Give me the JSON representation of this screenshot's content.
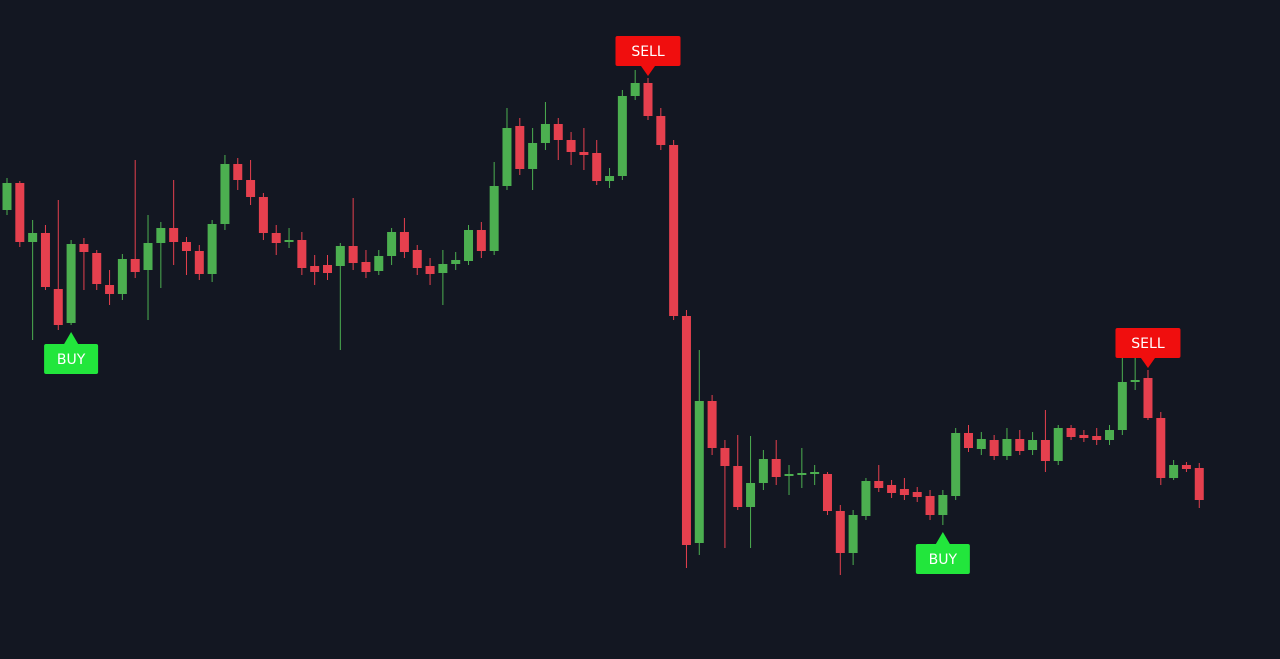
{
  "chart_data": {
    "type": "candlestick",
    "ylim": [
      0,
      659
    ],
    "up_color": "#4caf50",
    "down_color": "#e5404e",
    "signal_colors": {
      "BUY": "#22e63c",
      "SELL": "#f00e0e"
    },
    "open": [
      449,
      476,
      417,
      426,
      370,
      336,
      415,
      406,
      374,
      365,
      400,
      389,
      416,
      431,
      417,
      408,
      385,
      435,
      495,
      479,
      462,
      426,
      417,
      419,
      393,
      394,
      393,
      413,
      397,
      388,
      403,
      427,
      409,
      393,
      386,
      395,
      398,
      429,
      408,
      473,
      533,
      490,
      516,
      535,
      519,
      507,
      506,
      478,
      483,
      563,
      576,
      543,
      514,
      343,
      116,
      258,
      211,
      193,
      152,
      176,
      200,
      183,
      184,
      185,
      185,
      148,
      106,
      143,
      178,
      174,
      170,
      167,
      163,
      144,
      163,
      226,
      210,
      219,
      203,
      220,
      209,
      219,
      198,
      231,
      224,
      223,
      219,
      229,
      277,
      281,
      241,
      181,
      194,
      191
    ],
    "high": [
      481,
      478,
      439,
      434,
      459,
      419,
      421,
      409,
      389,
      405,
      499,
      444,
      437,
      479,
      422,
      414,
      439,
      504,
      501,
      499,
      466,
      434,
      431,
      427,
      404,
      404,
      416,
      461,
      409,
      409,
      431,
      441,
      414,
      401,
      409,
      407,
      434,
      437,
      497,
      551,
      541,
      531,
      557,
      541,
      527,
      531,
      519,
      491,
      569,
      589,
      581,
      551,
      519,
      349,
      309,
      264,
      219,
      224,
      223,
      209,
      219,
      194,
      211,
      194,
      187,
      154,
      149,
      181,
      194,
      179,
      181,
      172,
      169,
      169,
      231,
      234,
      227,
      224,
      231,
      229,
      227,
      249,
      234,
      234,
      229,
      231,
      234,
      301,
      301,
      289,
      247,
      199,
      197,
      196
    ],
    "low": [
      444,
      412,
      319,
      369,
      329,
      334,
      369,
      369,
      354,
      359,
      381,
      339,
      371,
      394,
      384,
      379,
      377,
      429,
      469,
      454,
      419,
      404,
      411,
      384,
      374,
      379,
      309,
      389,
      381,
      384,
      394,
      401,
      384,
      374,
      354,
      389,
      394,
      401,
      404,
      469,
      484,
      469,
      509,
      499,
      494,
      489,
      474,
      471,
      479,
      559,
      539,
      509,
      339,
      91,
      104,
      204,
      111,
      149,
      111,
      169,
      174,
      164,
      171,
      174,
      144,
      84,
      94,
      139,
      167,
      161,
      159,
      157,
      139,
      134,
      159,
      207,
      204,
      199,
      199,
      204,
      204,
      187,
      194,
      219,
      217,
      214,
      214,
      224,
      269,
      239,
      174,
      179,
      187,
      151
    ],
    "close": [
      476,
      417,
      426,
      372,
      334,
      415,
      407,
      375,
      365,
      400,
      387,
      416,
      431,
      417,
      408,
      385,
      435,
      495,
      479,
      462,
      426,
      416,
      419,
      391,
      387,
      386,
      413,
      396,
      387,
      403,
      427,
      407,
      391,
      385,
      395,
      399,
      429,
      408,
      473,
      531,
      490,
      516,
      535,
      519,
      507,
      504,
      478,
      483,
      563,
      576,
      543,
      514,
      343,
      114,
      258,
      211,
      193,
      152,
      176,
      200,
      182,
      185,
      186,
      187,
      148,
      106,
      144,
      178,
      171,
      166,
      164,
      162,
      144,
      164,
      226,
      211,
      220,
      203,
      220,
      208,
      219,
      198,
      231,
      222,
      221,
      219,
      229,
      277,
      279,
      241,
      181,
      194,
      190,
      159
    ],
    "signals": [
      null,
      null,
      null,
      null,
      null,
      "BUY",
      null,
      null,
      null,
      null,
      null,
      null,
      null,
      null,
      null,
      null,
      null,
      null,
      null,
      null,
      null,
      null,
      null,
      null,
      null,
      null,
      null,
      null,
      null,
      null,
      null,
      null,
      null,
      null,
      null,
      null,
      null,
      null,
      null,
      null,
      null,
      null,
      null,
      null,
      null,
      null,
      null,
      null,
      null,
      null,
      "SELL",
      null,
      null,
      null,
      null,
      null,
      null,
      null,
      null,
      null,
      null,
      null,
      null,
      null,
      null,
      null,
      null,
      null,
      null,
      null,
      null,
      null,
      null,
      "BUY",
      null,
      null,
      null,
      null,
      null,
      null,
      null,
      null,
      null,
      null,
      null,
      null,
      null,
      null,
      null,
      "SELL",
      null,
      null,
      null,
      null
    ]
  }
}
